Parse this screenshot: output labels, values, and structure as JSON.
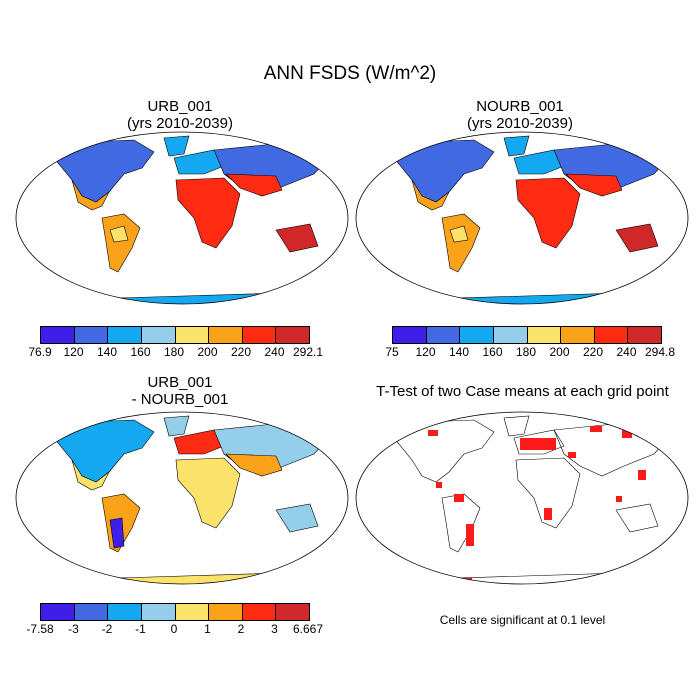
{
  "title": "ANN FSDS (W/m^2)",
  "panels": {
    "urb": {
      "title_line1": "URB_001",
      "title_line2": "(yrs 2010-2039)"
    },
    "nourb": {
      "title_line1": "NOURB_001",
      "title_line2": "(yrs 2010-2039)"
    },
    "diff": {
      "title_line1": "URB_001",
      "title_line2": "- NOURB_001"
    },
    "ttest": {
      "title": "T-Test of two Case means at each grid point",
      "note": "Cells are significant at 0.1 level",
      "sig_color": "#ff1a1a"
    }
  },
  "colorbars": {
    "urb": {
      "colors": [
        "#3f1fe8",
        "#4169e1",
        "#13a8ef",
        "#94ceeb",
        "#fbe26a",
        "#fba21b",
        "#ff2a12",
        "#d02828"
      ],
      "labels": [
        "76.9",
        "120",
        "140",
        "160",
        "180",
        "200",
        "220",
        "240",
        "292.1"
      ]
    },
    "nourb": {
      "colors": [
        "#3f1fe8",
        "#4169e1",
        "#13a8ef",
        "#94ceeb",
        "#fbe26a",
        "#fba21b",
        "#ff2a12",
        "#d02828"
      ],
      "labels": [
        "75",
        "120",
        "140",
        "160",
        "180",
        "200",
        "220",
        "240",
        "294.8"
      ]
    },
    "diff": {
      "colors": [
        "#3f1fe8",
        "#4169e1",
        "#13a8ef",
        "#94ceeb",
        "#fbe26a",
        "#fba21b",
        "#ff2a12",
        "#d02828"
      ],
      "labels": [
        "-7.58",
        "-3",
        "-2",
        "-1",
        "0",
        "1",
        "2",
        "3",
        "6.667"
      ]
    }
  }
}
